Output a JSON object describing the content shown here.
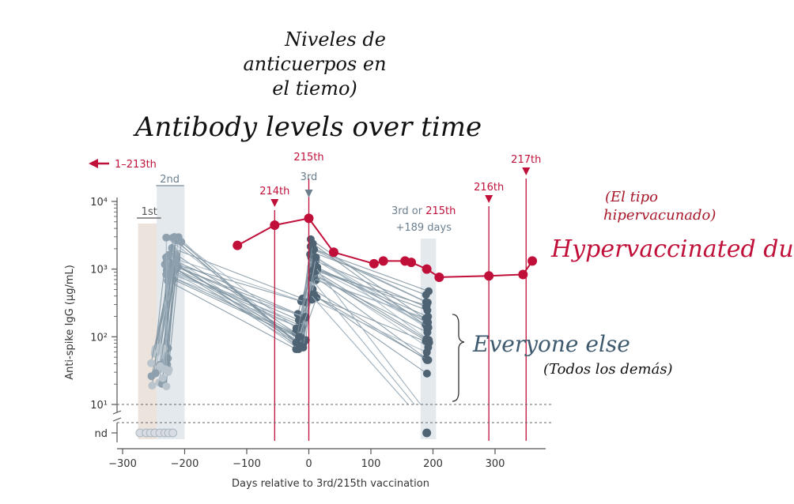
{
  "annotations": {
    "title_es": [
      "Niveles de",
      "anticuerpos en",
      "el tiemo)"
    ],
    "title_en": "Antibody levels over time",
    "hyper_es": [
      "(El tipo",
      "hipervacunado)"
    ],
    "hyper_en": "Hypervaccinated dude",
    "everyone_en": "Everyone else",
    "everyone_es": "(Todos los demás)"
  },
  "chart_data": {
    "type": "line",
    "xlabel": "Days relative to 3rd/215th vaccination",
    "ylabel": "Anti-spike IgG (µg/mL)",
    "xlim": [
      -320,
      380
    ],
    "xticks": [
      -300,
      -200,
      -100,
      0,
      100,
      200,
      300
    ],
    "yscale": "log",
    "ylim_log10": [
      1,
      4
    ],
    "yticks": [
      "10⁴",
      "10³",
      "10²",
      "10¹"
    ],
    "nd_label": "nd",
    "grid": false,
    "vaccination_markers": [
      {
        "label": "1–213th",
        "x": null,
        "color": "#c0103a"
      },
      {
        "label": "214th",
        "x": -55,
        "color": "#c0103a"
      },
      {
        "label": "215th",
        "x": 0,
        "color": "#c0103a"
      },
      {
        "label": "3rd",
        "x": 0,
        "color": "#6b7f8e"
      },
      {
        "label": "216th",
        "x": 290,
        "color": "#c0103a"
      },
      {
        "label": "217th",
        "x": 350,
        "color": "#c0103a"
      }
    ],
    "bands": [
      {
        "label": "1st",
        "x": [
          -275,
          -240
        ]
      },
      {
        "label": "2nd",
        "x": [
          -245,
          -200
        ]
      },
      {
        "label_parts": [
          "3rd or ",
          "215th",
          "+189 days"
        ],
        "x": [
          180,
          205
        ]
      }
    ],
    "series": [
      {
        "name": "Hypervaccinated dude",
        "color": "#c0103a",
        "x": [
          -115,
          -55,
          0,
          40,
          105,
          120,
          155,
          165,
          190,
          210,
          290,
          345,
          360
        ],
        "log10_y": [
          3.35,
          3.65,
          3.75,
          3.25,
          3.08,
          3.12,
          3.12,
          3.1,
          3.0,
          2.88,
          2.9,
          2.92,
          3.12
        ]
      },
      {
        "name": "Everyone else",
        "color": "#4e6373",
        "x": [
          -240,
          -225,
          -215,
          -5,
          0,
          5,
          190
        ],
        "log10_y": [
          1.4,
          3.3,
          3.1,
          2.4,
          2.9,
          3.4,
          2.4
        ]
      }
    ]
  }
}
